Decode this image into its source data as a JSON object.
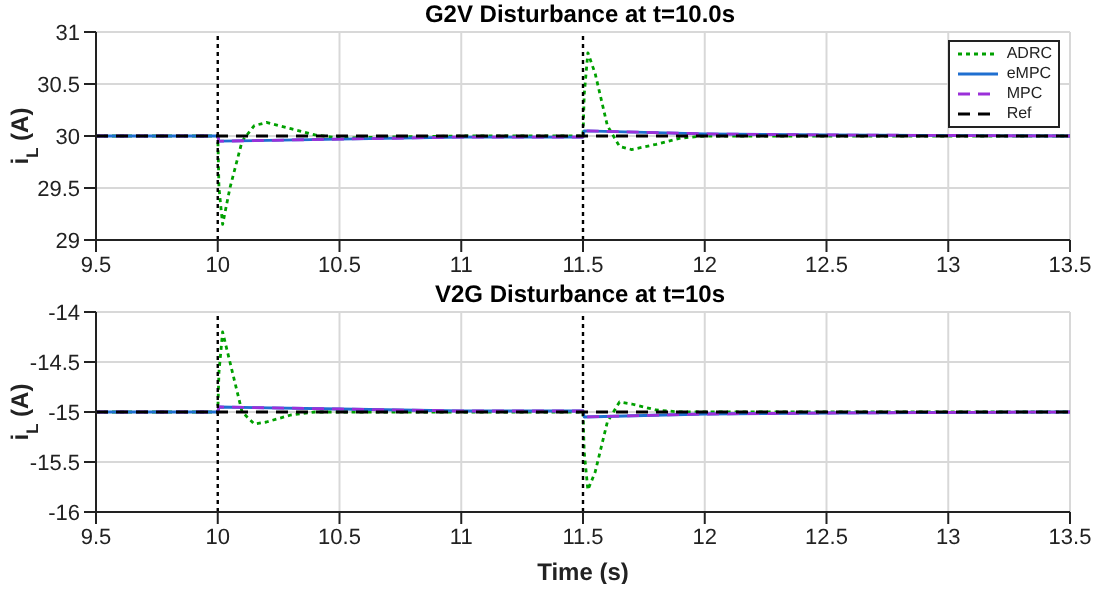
{
  "chart_data": [
    {
      "type": "line",
      "title": "G2V Disturbance at t=10.0s",
      "ylabel": "i$_{L}$  (A)",
      "xlim": [
        9.5,
        13.5
      ],
      "xticks": [
        9.5,
        10,
        10.5,
        11,
        11.5,
        12,
        12.5,
        13,
        13.5
      ],
      "ylim": [
        29,
        31
      ],
      "yticks": [
        29,
        29.5,
        30,
        30.5,
        31
      ],
      "grid": true,
      "legend": "top right",
      "ref_lines": [
        {
          "axis": "x",
          "value": 10,
          "color": "#000000",
          "line_style": "dotted"
        },
        {
          "axis": "x",
          "value": 11.5,
          "color": "#000000",
          "line_style": "dotted"
        }
      ],
      "series": [
        {
          "name": "ADRC",
          "color": "#00a000",
          "line_style": "dotted",
          "x": [
            9.5,
            10,
            10.005,
            10.02,
            10.05,
            10.1,
            10.15,
            10.2,
            10.3,
            10.4,
            10.5,
            10.7,
            11,
            11.5,
            11.505,
            11.52,
            11.55,
            11.6,
            11.65,
            11.7,
            11.8,
            11.9,
            12,
            13.5
          ],
          "values": [
            30,
            30,
            29.5,
            29.15,
            29.5,
            29.95,
            30.1,
            30.13,
            30.07,
            30.01,
            29.98,
            29.99,
            30,
            30,
            30.4,
            30.8,
            30.6,
            30.1,
            29.9,
            29.87,
            29.92,
            29.98,
            30,
            30
          ]
        },
        {
          "name": "eMPC",
          "color": "#1f6fd0",
          "line_style": "solid",
          "x": [
            9.5,
            10,
            10.005,
            10.5,
            11,
            11.5,
            11.505,
            12,
            12.5,
            13.5
          ],
          "values": [
            30,
            30,
            29.95,
            29.97,
            29.99,
            29.99,
            30.05,
            30.02,
            30.01,
            30
          ]
        },
        {
          "name": "MPC",
          "color": "#9b30d9",
          "line_style": "dashed",
          "x": [
            9.5,
            10,
            10.005,
            10.5,
            11,
            11.5,
            11.505,
            12,
            12.5,
            13.5
          ],
          "values": [
            30,
            30,
            29.95,
            29.97,
            29.99,
            29.99,
            30.05,
            30.02,
            30.01,
            30
          ]
        },
        {
          "name": "Ref",
          "color": "#000000",
          "line_style": "dashed",
          "x": [
            9.5,
            13.5
          ],
          "values": [
            30,
            30
          ]
        }
      ]
    },
    {
      "type": "line",
      "title": "V2G Disturbance at t=10s",
      "xlabel": "Time (s)",
      "ylabel": "i$_{L}$  (A)",
      "xlim": [
        9.5,
        13.5
      ],
      "xticks": [
        9.5,
        10,
        10.5,
        11,
        11.5,
        12,
        12.5,
        13,
        13.5
      ],
      "ylim": [
        -16,
        -14
      ],
      "yticks": [
        -16,
        -15.5,
        -15,
        -14.5,
        -14
      ],
      "grid": true,
      "ref_lines": [
        {
          "axis": "x",
          "value": 10,
          "color": "#000000",
          "line_style": "dotted"
        },
        {
          "axis": "x",
          "value": 11.5,
          "color": "#000000",
          "line_style": "dotted"
        }
      ],
      "series": [
        {
          "color": "#00a000",
          "line_style": "dotted",
          "x": [
            9.5,
            10,
            10.005,
            10.02,
            10.05,
            10.1,
            10.15,
            10.2,
            10.3,
            10.4,
            10.5,
            11,
            11.5,
            11.505,
            11.52,
            11.55,
            11.6,
            11.65,
            11.7,
            11.8,
            11.9,
            12,
            13.5
          ],
          "values": [
            -15,
            -15,
            -14.6,
            -14.2,
            -14.5,
            -15,
            -15.12,
            -15.1,
            -15.03,
            -15,
            -15,
            -15,
            -15,
            -15.4,
            -15.78,
            -15.6,
            -15.1,
            -14.9,
            -14.92,
            -14.98,
            -15,
            -15,
            -15
          ]
        },
        {
          "color": "#1f6fd0",
          "line_style": "solid",
          "x": [
            9.5,
            10,
            10.005,
            10.5,
            11,
            11.5,
            11.505,
            12,
            12.5,
            13.5
          ],
          "values": [
            -15,
            -15,
            -14.95,
            -14.97,
            -14.99,
            -14.99,
            -15.05,
            -15.02,
            -15.01,
            -15
          ]
        },
        {
          "color": "#9b30d9",
          "line_style": "dashed",
          "x": [
            9.5,
            10,
            10.005,
            10.5,
            11,
            11.5,
            11.505,
            12,
            12.5,
            13.5
          ],
          "values": [
            -15,
            -15,
            -14.95,
            -14.97,
            -14.99,
            -14.99,
            -15.05,
            -15.02,
            -15.01,
            -15
          ]
        },
        {
          "color": "#000000",
          "line_style": "dashed",
          "x": [
            9.5,
            13.5
          ],
          "values": [
            -15,
            -15
          ]
        }
      ]
    }
  ]
}
